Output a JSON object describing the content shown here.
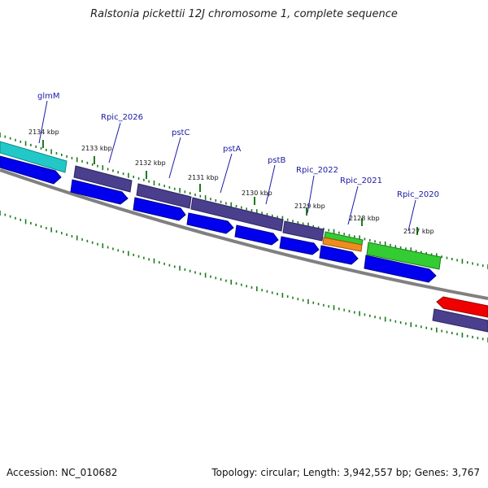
{
  "title": "Ralstonia pickettii 12J chromosome 1, complete sequence",
  "footer": {
    "accession": "Accession: NC_010682",
    "summary": "Topology: circular; Length: 3,942,557 bp; Genes: 3,767"
  },
  "colors": {
    "backbone": "#808080",
    "tick": "#1e7a1e",
    "label": "#1a1aa6",
    "cds": "#0000ee",
    "gene": "#4a3f8c",
    "teal": "#22c8c8",
    "green": "#33cc33",
    "orange": "#f08c1e",
    "red": "#ee0000"
  },
  "ticks": [
    {
      "label": "2134 kbp"
    },
    {
      "label": "2133 kbp"
    },
    {
      "label": "2132 kbp"
    },
    {
      "label": "2131 kbp"
    },
    {
      "label": "2130 kbp"
    },
    {
      "label": "2129 kbp"
    },
    {
      "label": "2128 kbp"
    },
    {
      "label": "2127 kbp"
    }
  ],
  "genes": [
    {
      "name": "glmM"
    },
    {
      "name": "Rpic_2026"
    },
    {
      "name": "pstC"
    },
    {
      "name": "pstA"
    },
    {
      "name": "pstB"
    },
    {
      "name": "Rpic_2022"
    },
    {
      "name": "Rpic_2021"
    },
    {
      "name": "Rpic_2020"
    }
  ]
}
